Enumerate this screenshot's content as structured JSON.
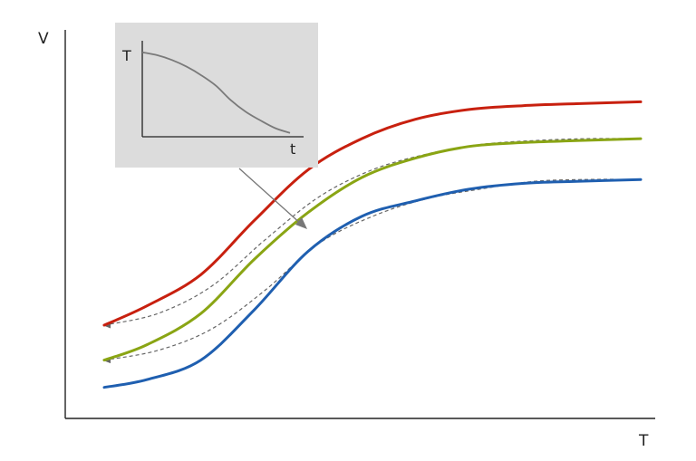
{
  "chart_data": {
    "type": "line",
    "xlabel": "T",
    "ylabel": "V",
    "grid": false,
    "colors": {
      "red": "#c8200f",
      "green": "#8aa514",
      "blue": "#1f5fb0",
      "dashed": "#666666",
      "inset_curve": "#7a7a7a",
      "inset_bg": "#dcdcdc"
    },
    "series": [
      {
        "color": "red",
        "x": [
          0.0,
          0.08,
          0.18,
          0.28,
          0.38,
          0.48,
          0.58,
          0.68,
          0.78,
          0.88,
          1.0
        ],
        "y": [
          0.24,
          0.29,
          0.37,
          0.51,
          0.64,
          0.72,
          0.77,
          0.795,
          0.805,
          0.81,
          0.815
        ]
      },
      {
        "color": "green",
        "x": [
          0.0,
          0.08,
          0.18,
          0.28,
          0.38,
          0.48,
          0.58,
          0.68,
          0.78,
          0.88,
          1.0
        ],
        "y": [
          0.15,
          0.19,
          0.27,
          0.41,
          0.53,
          0.62,
          0.67,
          0.7,
          0.71,
          0.715,
          0.72
        ]
      },
      {
        "color": "blue",
        "x": [
          0.0,
          0.08,
          0.18,
          0.28,
          0.38,
          0.48,
          0.58,
          0.68,
          0.78,
          0.88,
          1.0
        ],
        "y": [
          0.08,
          0.1,
          0.15,
          0.28,
          0.43,
          0.52,
          0.56,
          0.59,
          0.605,
          0.61,
          0.615
        ]
      }
    ],
    "dashed_links": [
      {
        "from": "green",
        "to": "red",
        "x": [
          0.0,
          0.1,
          0.2,
          0.3,
          0.4,
          0.5,
          0.6,
          0.7,
          0.8,
          0.9,
          1.0
        ],
        "y": [
          0.24,
          0.27,
          0.34,
          0.46,
          0.57,
          0.64,
          0.68,
          0.705,
          0.715,
          0.72,
          0.72
        ]
      },
      {
        "from": "blue",
        "to": "green",
        "x": [
          0.0,
          0.1,
          0.2,
          0.3,
          0.4,
          0.5,
          0.6,
          0.7,
          0.8,
          0.9,
          1.0
        ],
        "y": [
          0.15,
          0.175,
          0.23,
          0.33,
          0.45,
          0.52,
          0.565,
          0.59,
          0.61,
          0.615,
          0.615
        ]
      }
    ],
    "inset": {
      "xlabel": "t",
      "ylabel": "T",
      "curve": {
        "x": [
          0.0,
          0.1,
          0.2,
          0.3,
          0.4,
          0.5,
          0.6,
          0.7,
          0.8,
          0.9,
          1.0
        ],
        "y": [
          0.88,
          0.85,
          0.8,
          0.73,
          0.64,
          0.53,
          0.38,
          0.26,
          0.17,
          0.09,
          0.04
        ]
      }
    }
  }
}
